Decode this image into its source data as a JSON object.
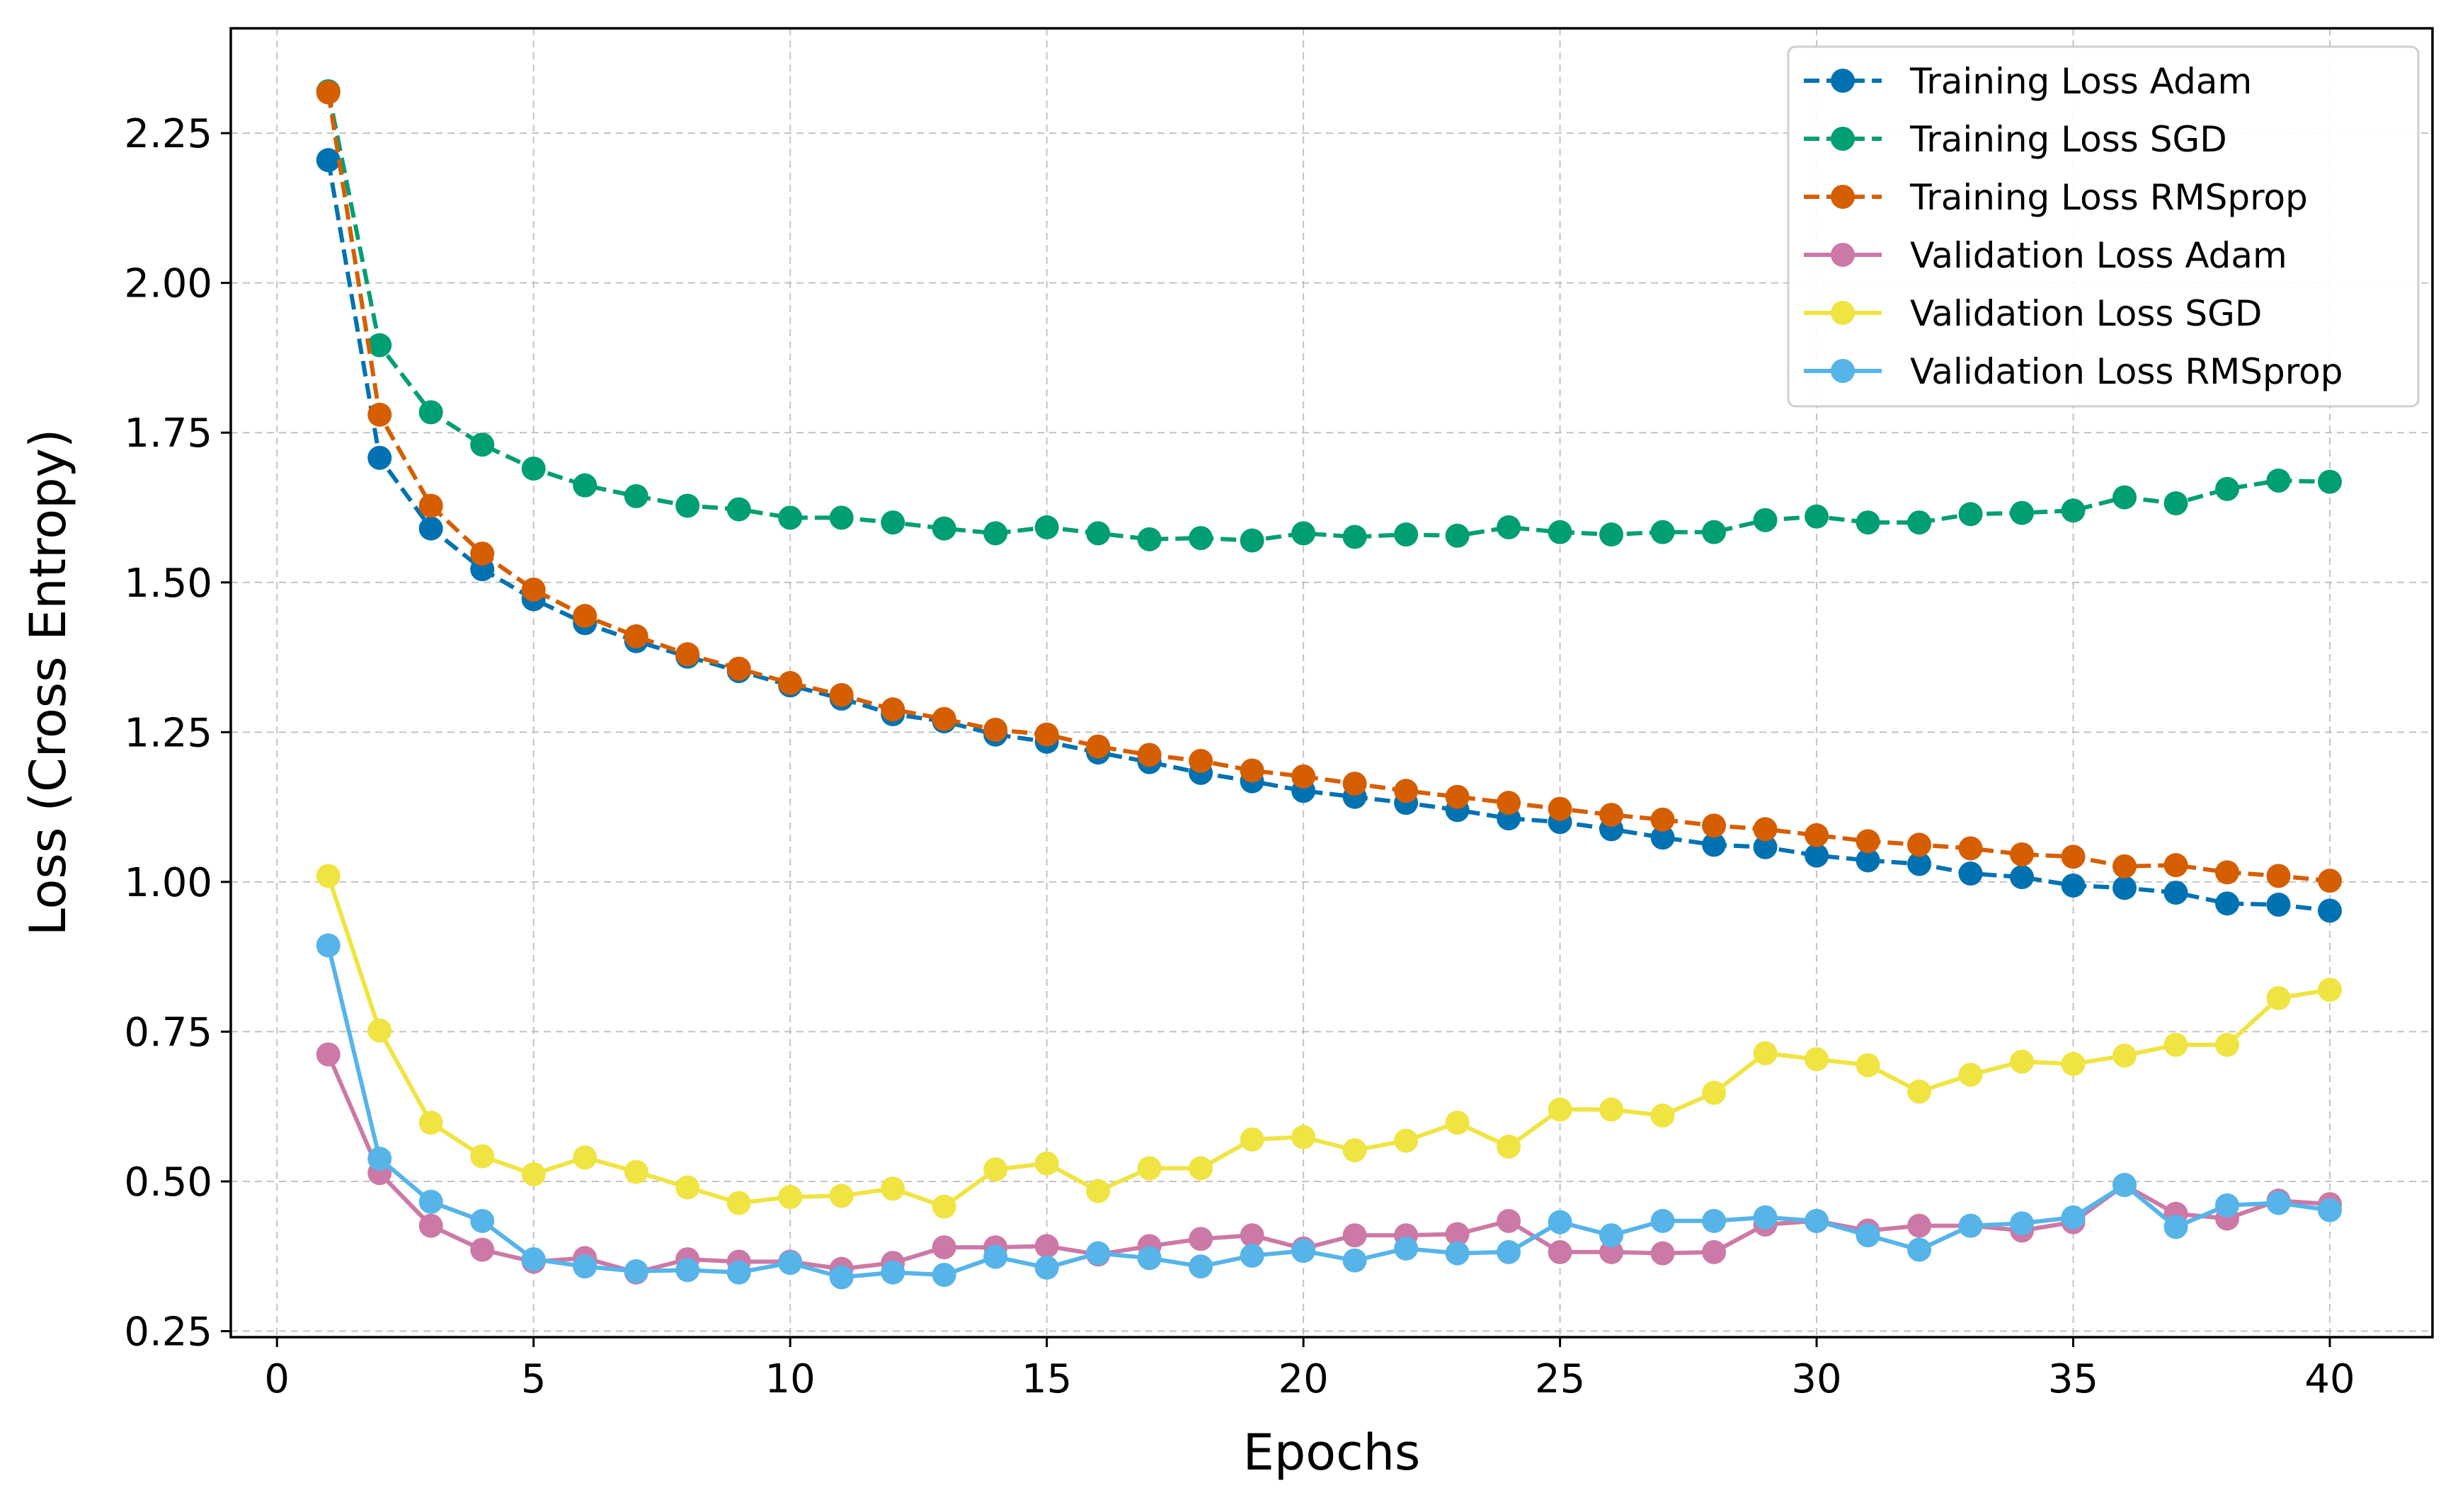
{
  "chart_data": {
    "type": "line",
    "xlabel": "Epochs",
    "ylabel": "Loss (Cross Entropy)",
    "xlim": [
      -0.9,
      42.0
    ],
    "ylim": [
      0.24,
      2.425
    ],
    "xticks": [
      0,
      5,
      10,
      15,
      20,
      25,
      30,
      35,
      40
    ],
    "xtick_labels": [
      "0",
      "5",
      "10",
      "15",
      "20",
      "25",
      "30",
      "35",
      "40"
    ],
    "yticks": [
      0.25,
      0.5,
      0.75,
      1.0,
      1.25,
      1.5,
      1.75,
      2.0,
      2.25
    ],
    "ytick_labels": [
      "0.25",
      "0.50",
      "0.75",
      "1.00",
      "1.25",
      "1.50",
      "1.75",
      "2.00",
      "2.25"
    ],
    "grid": true,
    "legend_position": "top-right",
    "x": [
      1,
      2,
      3,
      4,
      5,
      6,
      7,
      8,
      9,
      10,
      11,
      12,
      13,
      14,
      15,
      16,
      17,
      18,
      19,
      20,
      21,
      22,
      23,
      24,
      25,
      26,
      27,
      28,
      29,
      30,
      31,
      32,
      33,
      34,
      35,
      36,
      37,
      38,
      39,
      40
    ],
    "series": [
      {
        "name": "Training Loss Adam",
        "color": "#0072B2",
        "linestyle": "dashed",
        "marker": "circle",
        "values": [
          2.205,
          1.708,
          1.59,
          1.522,
          1.472,
          1.432,
          1.402,
          1.376,
          1.352,
          1.328,
          1.306,
          1.28,
          1.268,
          1.246,
          1.234,
          1.216,
          1.2,
          1.182,
          1.168,
          1.152,
          1.142,
          1.132,
          1.12,
          1.106,
          1.1,
          1.088,
          1.074,
          1.062,
          1.058,
          1.044,
          1.036,
          1.03,
          1.014,
          1.008,
          0.994,
          0.99,
          0.982,
          0.964,
          0.962,
          0.952
        ]
      },
      {
        "name": "Training Loss SGD",
        "color": "#009E73",
        "linestyle": "dashed",
        "marker": "circle",
        "values": [
          2.32,
          1.896,
          1.784,
          1.73,
          1.69,
          1.662,
          1.644,
          1.628,
          1.622,
          1.608,
          1.608,
          1.6,
          1.59,
          1.582,
          1.592,
          1.582,
          1.572,
          1.574,
          1.57,
          1.582,
          1.576,
          1.58,
          1.578,
          1.592,
          1.584,
          1.58,
          1.584,
          1.584,
          1.604,
          1.61,
          1.6,
          1.6,
          1.614,
          1.616,
          1.62,
          1.642,
          1.632,
          1.656,
          1.67,
          1.668
        ]
      },
      {
        "name": "Training Loss RMSprop",
        "color": "#D55E00",
        "linestyle": "dashed",
        "marker": "circle",
        "values": [
          2.318,
          1.78,
          1.628,
          1.548,
          1.488,
          1.444,
          1.41,
          1.38,
          1.356,
          1.332,
          1.312,
          1.288,
          1.272,
          1.254,
          1.246,
          1.226,
          1.212,
          1.202,
          1.186,
          1.176,
          1.164,
          1.152,
          1.142,
          1.132,
          1.122,
          1.112,
          1.104,
          1.094,
          1.088,
          1.078,
          1.068,
          1.062,
          1.056,
          1.046,
          1.042,
          1.026,
          1.028,
          1.016,
          1.01,
          1.002
        ]
      },
      {
        "name": "Validation Loss Adam",
        "color": "#CC79A7",
        "linestyle": "solid",
        "marker": "circle",
        "values": [
          0.712,
          0.514,
          0.426,
          0.386,
          0.366,
          0.372,
          0.348,
          0.37,
          0.366,
          0.366,
          0.354,
          0.364,
          0.39,
          0.39,
          0.392,
          0.378,
          0.392,
          0.404,
          0.41,
          0.388,
          0.41,
          0.41,
          0.412,
          0.434,
          0.382,
          0.382,
          0.38,
          0.382,
          0.428,
          0.434,
          0.418,
          0.426,
          0.426,
          0.418,
          0.432,
          0.494,
          0.446,
          0.438,
          0.468,
          0.462
        ]
      },
      {
        "name": "Validation Loss SGD",
        "color": "#F0E442",
        "linestyle": "solid",
        "marker": "circle",
        "values": [
          1.01,
          0.752,
          0.598,
          0.542,
          0.512,
          0.54,
          0.516,
          0.49,
          0.464,
          0.474,
          0.476,
          0.488,
          0.458,
          0.52,
          0.53,
          0.484,
          0.522,
          0.522,
          0.57,
          0.574,
          0.552,
          0.568,
          0.598,
          0.558,
          0.62,
          0.62,
          0.61,
          0.648,
          0.714,
          0.704,
          0.694,
          0.65,
          0.678,
          0.7,
          0.696,
          0.71,
          0.728,
          0.728,
          0.806,
          0.82
        ]
      },
      {
        "name": "Validation Loss RMSprop",
        "color": "#56B4E9",
        "linestyle": "solid",
        "marker": "circle",
        "values": [
          0.894,
          0.538,
          0.466,
          0.434,
          0.37,
          0.358,
          0.35,
          0.352,
          0.348,
          0.364,
          0.34,
          0.348,
          0.344,
          0.374,
          0.356,
          0.38,
          0.372,
          0.358,
          0.376,
          0.384,
          0.368,
          0.388,
          0.38,
          0.382,
          0.432,
          0.41,
          0.434,
          0.434,
          0.44,
          0.434,
          0.41,
          0.386,
          0.426,
          0.43,
          0.44,
          0.494,
          0.424,
          0.46,
          0.464,
          0.452
        ]
      }
    ]
  }
}
